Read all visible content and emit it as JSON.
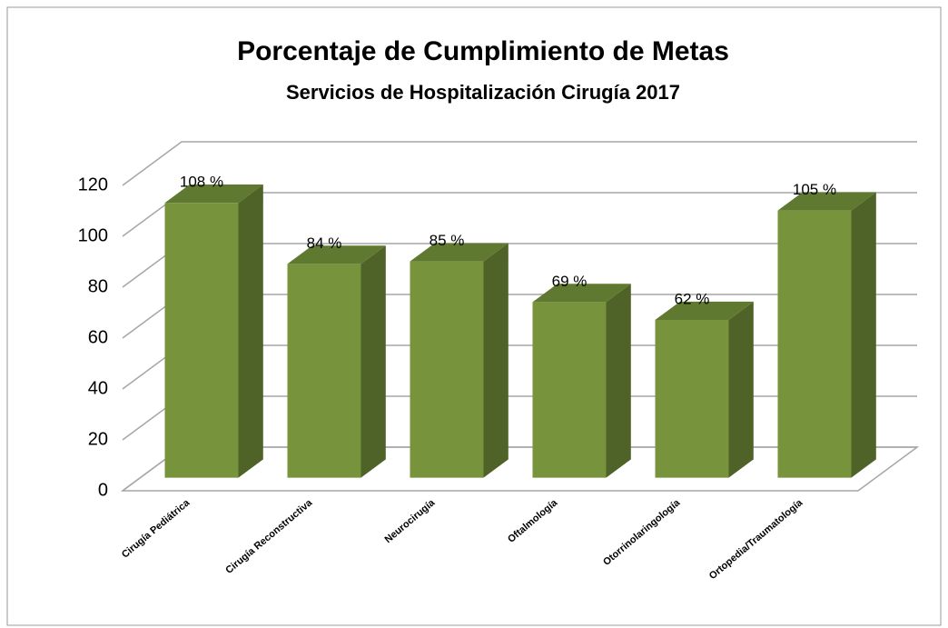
{
  "chart_data": {
    "type": "bar3d",
    "title": "Porcentaje de Cumplimiento de Metas",
    "subtitle": "Servicios de Hospitalización Cirugía 2017",
    "categories": [
      "Cirugía Pediátrica",
      "Cirugía Reconstructiva",
      "Neurocirugía",
      "Oftalmología",
      "Otorrinolaringología",
      "Ortopedia/Traumatología"
    ],
    "values": [
      108,
      84,
      85,
      69,
      62,
      105
    ],
    "value_labels": [
      "108 %",
      "84 %",
      "85 %",
      "69 %",
      "62 %",
      "105 %"
    ],
    "color": "#77933c",
    "ylim": [
      0,
      120
    ],
    "yticks": [
      0,
      20,
      40,
      60,
      80,
      100,
      120
    ],
    "grid": true
  }
}
